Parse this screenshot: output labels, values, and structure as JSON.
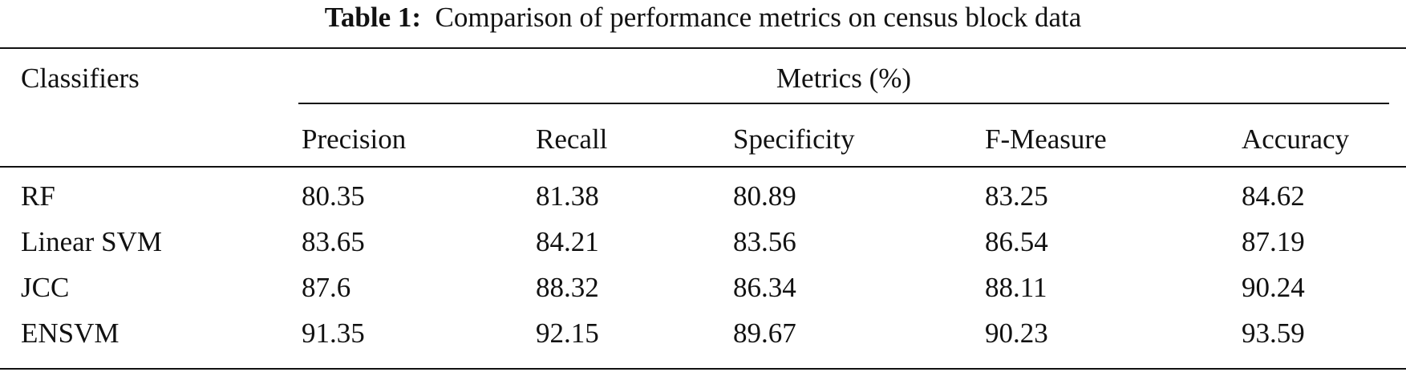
{
  "caption": {
    "label": "Table 1:",
    "text": "Comparison of performance metrics on census block data"
  },
  "table": {
    "row_header": "Classifiers",
    "group_header": "Metrics (%)",
    "columns": [
      "Precision",
      "Recall",
      "Specificity",
      "F-Measure",
      "Accuracy"
    ],
    "rows": [
      {
        "name": "RF",
        "values": [
          "80.35",
          "81.38",
          "80.89",
          "83.25",
          "84.62"
        ]
      },
      {
        "name": "Linear SVM",
        "values": [
          "83.65",
          "84.21",
          "83.56",
          "86.54",
          "87.19"
        ]
      },
      {
        "name": "JCC",
        "values": [
          "87.6",
          "88.32",
          "86.34",
          "88.11",
          "90.24"
        ]
      },
      {
        "name": "ENSVM",
        "values": [
          "91.35",
          "92.15",
          "89.67",
          "90.23",
          "93.59"
        ]
      }
    ]
  }
}
